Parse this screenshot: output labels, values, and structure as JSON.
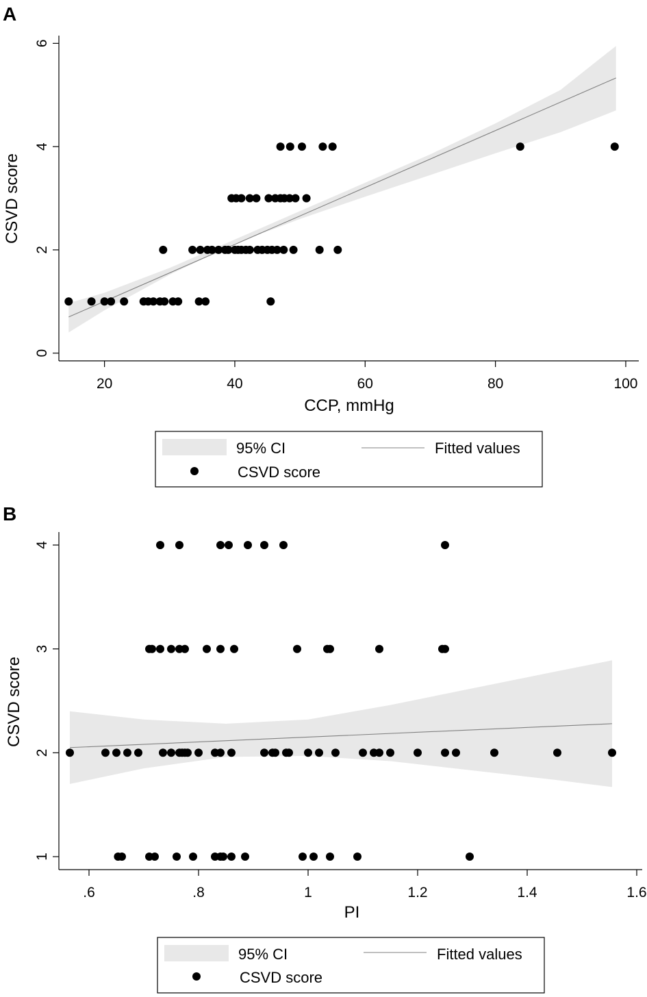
{
  "chart_data": [
    {
      "panel": "A",
      "type": "scatter",
      "xlabel": "CCP, mmHg",
      "ylabel": "CSVD score",
      "xlim": [
        13,
        102
      ],
      "ylim": [
        -0.15,
        6.15
      ],
      "xticks": [
        20,
        40,
        60,
        80,
        100
      ],
      "xtick_labels": [
        "20",
        "40",
        "60",
        "80",
        "100"
      ],
      "yticks": [
        0,
        2,
        4,
        6
      ],
      "ytick_labels": [
        "0",
        "2",
        "4",
        "6"
      ],
      "fit": {
        "x0": 14.5,
        "y0": 0.7,
        "x1": 98.5,
        "y1": 5.33
      },
      "ci": {
        "x": [
          14.5,
          20,
          30,
          40,
          50,
          60,
          70,
          80,
          90,
          98.5
        ],
        "lower": [
          0.4,
          0.83,
          1.52,
          2.12,
          2.6,
          3.03,
          3.45,
          3.87,
          4.28,
          4.7
        ],
        "upper": [
          0.97,
          1.17,
          1.65,
          2.2,
          2.75,
          3.3,
          3.85,
          4.45,
          5.1,
          5.95
        ]
      },
      "points": [
        [
          14.5,
          1
        ],
        [
          18,
          1
        ],
        [
          20,
          1
        ],
        [
          21,
          1
        ],
        [
          23,
          1
        ],
        [
          26,
          1
        ],
        [
          26.7,
          1
        ],
        [
          27.5,
          1
        ],
        [
          28.5,
          1
        ],
        [
          29.2,
          1
        ],
        [
          30.5,
          1
        ],
        [
          31.3,
          1
        ],
        [
          34.5,
          1
        ],
        [
          35.5,
          1
        ],
        [
          45.5,
          1
        ],
        [
          29,
          2
        ],
        [
          33.5,
          2
        ],
        [
          34.7,
          2
        ],
        [
          35.8,
          2
        ],
        [
          36.5,
          2
        ],
        [
          37.5,
          2
        ],
        [
          38.5,
          2
        ],
        [
          39,
          2
        ],
        [
          40,
          2
        ],
        [
          40.5,
          2
        ],
        [
          41,
          2
        ],
        [
          41.7,
          2
        ],
        [
          42.3,
          2
        ],
        [
          43.5,
          2
        ],
        [
          44.2,
          2
        ],
        [
          45,
          2
        ],
        [
          45.7,
          2
        ],
        [
          46.5,
          2
        ],
        [
          47.5,
          2
        ],
        [
          49,
          2
        ],
        [
          53,
          2
        ],
        [
          55.8,
          2
        ],
        [
          39.5,
          3
        ],
        [
          40.2,
          3
        ],
        [
          41,
          3
        ],
        [
          42.3,
          3
        ],
        [
          43.3,
          3
        ],
        [
          45.2,
          3
        ],
        [
          46.2,
          3
        ],
        [
          47,
          3
        ],
        [
          47.6,
          3
        ],
        [
          48.4,
          3
        ],
        [
          49.3,
          3
        ],
        [
          51,
          3
        ],
        [
          47,
          4
        ],
        [
          48.5,
          4
        ],
        [
          50.3,
          4
        ],
        [
          53.5,
          4
        ],
        [
          55,
          4
        ],
        [
          83.8,
          4
        ],
        [
          98.3,
          4
        ]
      ],
      "legend": {
        "ci_label": "95% CI",
        "fit_label": "Fitted values",
        "points_label": "CSVD score"
      }
    },
    {
      "panel": "B",
      "type": "scatter",
      "xlabel": "PI",
      "ylabel": "CSVD score",
      "xlim": [
        0.545,
        1.61
      ],
      "ylim": [
        0.875,
        4.125
      ],
      "xticks": [
        0.6,
        0.8,
        1.0,
        1.2,
        1.4,
        1.6
      ],
      "xtick_labels": [
        ".6",
        ".8",
        "1",
        "1.2",
        "1.4",
        "1.6"
      ],
      "yticks": [
        1,
        2,
        3,
        4
      ],
      "ytick_labels": [
        "1",
        "2",
        "3",
        "4"
      ],
      "fit": {
        "x0": 0.565,
        "y0": 2.05,
        "x1": 1.555,
        "y1": 2.28
      },
      "ci": {
        "x": [
          0.565,
          0.7,
          0.85,
          1.0,
          1.15,
          1.3,
          1.45,
          1.555
        ],
        "lower": [
          1.7,
          1.85,
          1.96,
          1.97,
          1.92,
          1.83,
          1.74,
          1.67
        ],
        "upper": [
          2.4,
          2.32,
          2.28,
          2.32,
          2.46,
          2.62,
          2.78,
          2.89
        ]
      },
      "points": [
        [
          0.653,
          1
        ],
        [
          0.66,
          1
        ],
        [
          0.71,
          1
        ],
        [
          0.72,
          1
        ],
        [
          0.76,
          1
        ],
        [
          0.79,
          1
        ],
        [
          0.83,
          1
        ],
        [
          0.84,
          1
        ],
        [
          0.845,
          1
        ],
        [
          0.86,
          1
        ],
        [
          0.885,
          1
        ],
        [
          0.99,
          1
        ],
        [
          1.01,
          1
        ],
        [
          1.04,
          1
        ],
        [
          1.09,
          1
        ],
        [
          1.295,
          1
        ],
        [
          0.565,
          2
        ],
        [
          0.63,
          2
        ],
        [
          0.65,
          2
        ],
        [
          0.67,
          2
        ],
        [
          0.69,
          2
        ],
        [
          0.735,
          2
        ],
        [
          0.75,
          2
        ],
        [
          0.765,
          2
        ],
        [
          0.77,
          2
        ],
        [
          0.775,
          2
        ],
        [
          0.78,
          2
        ],
        [
          0.8,
          2
        ],
        [
          0.83,
          2
        ],
        [
          0.84,
          2
        ],
        [
          0.86,
          2
        ],
        [
          0.92,
          2
        ],
        [
          0.935,
          2
        ],
        [
          0.94,
          2
        ],
        [
          0.96,
          2
        ],
        [
          0.965,
          2
        ],
        [
          1.0,
          2
        ],
        [
          1.02,
          2
        ],
        [
          1.05,
          2
        ],
        [
          1.1,
          2
        ],
        [
          1.12,
          2
        ],
        [
          1.13,
          2
        ],
        [
          1.15,
          2
        ],
        [
          1.2,
          2
        ],
        [
          1.25,
          2
        ],
        [
          1.27,
          2
        ],
        [
          1.34,
          2
        ],
        [
          1.455,
          2
        ],
        [
          1.555,
          2
        ],
        [
          0.71,
          3
        ],
        [
          0.715,
          3
        ],
        [
          0.73,
          3
        ],
        [
          0.75,
          3
        ],
        [
          0.765,
          3
        ],
        [
          0.775,
          3
        ],
        [
          0.815,
          3
        ],
        [
          0.84,
          3
        ],
        [
          0.865,
          3
        ],
        [
          0.98,
          3
        ],
        [
          1.035,
          3
        ],
        [
          1.04,
          3
        ],
        [
          1.13,
          3
        ],
        [
          1.245,
          3
        ],
        [
          1.25,
          3
        ],
        [
          0.73,
          4
        ],
        [
          0.765,
          4
        ],
        [
          0.84,
          4
        ],
        [
          0.855,
          4
        ],
        [
          0.89,
          4
        ],
        [
          0.92,
          4
        ],
        [
          0.955,
          4
        ],
        [
          1.25,
          4
        ]
      ],
      "legend": {
        "ci_label": "95% CI",
        "fit_label": "Fitted values",
        "points_label": "CSVD score"
      }
    }
  ]
}
